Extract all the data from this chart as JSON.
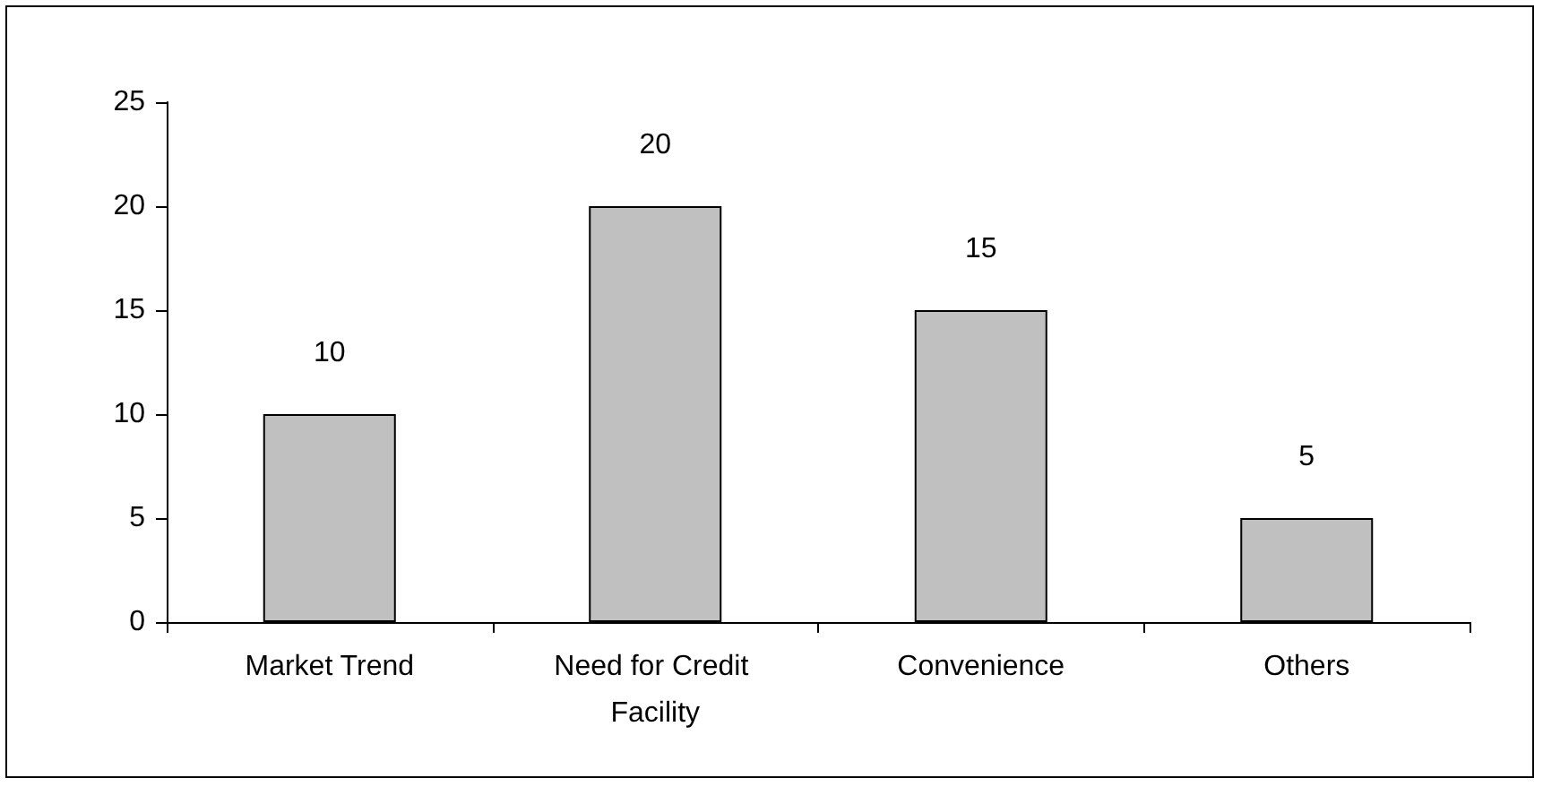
{
  "chart_data": {
    "type": "bar",
    "categories": [
      "Market Trend",
      "Need for Credit Facility",
      "Convenience",
      "Others"
    ],
    "values": [
      10,
      20,
      15,
      5
    ],
    "color": "#c0c0c0",
    "ylim": [
      0,
      25
    ],
    "yticks": [
      0,
      5,
      10,
      15,
      20,
      25
    ],
    "grid": false,
    "data_labels": true
  }
}
